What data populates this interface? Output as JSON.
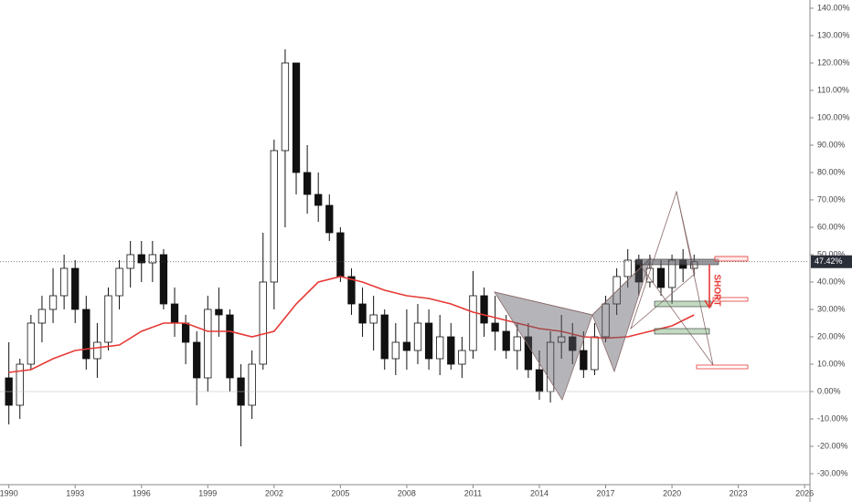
{
  "chart_data": {
    "type": "candlestick",
    "x": [
      1990,
      1990.5,
      1991,
      1991.5,
      1992,
      1992.5,
      1993,
      1993.5,
      1994,
      1994.5,
      1995,
      1995.5,
      1996,
      1996.5,
      1997,
      1997.5,
      1998,
      1998.5,
      1999,
      1999.5,
      2000,
      2000.5,
      2001,
      2001.5,
      2002,
      2002.5,
      2003,
      2003.5,
      2004,
      2004.5,
      2005,
      2005.5,
      2006,
      2006.5,
      2007,
      2007.5,
      2008,
      2008.5,
      2009,
      2009.5,
      2010,
      2010.5,
      2011,
      2011.5,
      2012,
      2012.5,
      2013,
      2013.5,
      2014,
      2014.5,
      2015,
      2015.5,
      2016,
      2016.5,
      2017,
      2017.5,
      2018,
      2018.5,
      2019,
      2019.5,
      2020,
      2020.5,
      2021
    ],
    "open": [
      5,
      -5,
      10,
      25,
      30,
      35,
      45,
      30,
      12,
      18,
      35,
      45,
      50,
      47,
      50,
      32,
      25,
      18,
      5,
      30,
      28,
      5,
      -5,
      10,
      40,
      88,
      120,
      80,
      72,
      68,
      58,
      42,
      32,
      25,
      28,
      12,
      18,
      15,
      25,
      12,
      20,
      10,
      15,
      35,
      25,
      22,
      15,
      20,
      8,
      0,
      18,
      20,
      15,
      8,
      20,
      32,
      42,
      48,
      40,
      45,
      38,
      48,
      45
    ],
    "high": [
      18,
      12,
      28,
      35,
      45,
      50,
      48,
      35,
      25,
      38,
      48,
      55,
      55,
      55,
      52,
      38,
      28,
      22,
      35,
      38,
      30,
      10,
      15,
      58,
      92,
      125,
      120,
      90,
      80,
      72,
      60,
      45,
      38,
      35,
      30,
      25,
      30,
      32,
      30,
      28,
      25,
      20,
      44,
      38,
      35,
      28,
      25,
      25,
      15,
      22,
      28,
      25,
      22,
      25,
      35,
      45,
      52,
      50,
      50,
      48,
      50,
      52,
      50
    ],
    "low": [
      -12,
      -10,
      8,
      18,
      25,
      30,
      25,
      8,
      5,
      15,
      30,
      38,
      40,
      40,
      30,
      20,
      10,
      -5,
      0,
      20,
      0,
      -20,
      -10,
      8,
      30,
      60,
      72,
      65,
      62,
      55,
      40,
      28,
      20,
      15,
      8,
      6,
      8,
      10,
      8,
      6,
      8,
      5,
      12,
      20,
      15,
      12,
      8,
      5,
      -3,
      -4,
      12,
      10,
      5,
      6,
      18,
      28,
      38,
      35,
      38,
      35,
      32,
      40,
      42
    ],
    "close": [
      -5,
      10,
      25,
      30,
      35,
      45,
      30,
      12,
      18,
      35,
      45,
      50,
      47,
      50,
      32,
      25,
      18,
      5,
      30,
      28,
      5,
      -5,
      10,
      40,
      88,
      120,
      80,
      72,
      68,
      58,
      42,
      32,
      25,
      28,
      12,
      18,
      15,
      25,
      12,
      20,
      10,
      15,
      35,
      25,
      22,
      15,
      20,
      8,
      0,
      18,
      20,
      15,
      8,
      20,
      32,
      42,
      48,
      40,
      45,
      38,
      48,
      45,
      47.42
    ],
    "ma": {
      "color": "#e53935",
      "x": [
        1990,
        1991,
        1992,
        1993,
        1994,
        1995,
        1996,
        1997,
        1998,
        1999,
        2000,
        2001,
        2002,
        2003,
        2004,
        2005,
        2006,
        2007,
        2008,
        2009,
        2010,
        2011,
        2012,
        2013,
        2014,
        2015,
        2016,
        2017,
        2018,
        2019,
        2020,
        2021
      ],
      "values": [
        7,
        8,
        12,
        15,
        16,
        17,
        22,
        25,
        25,
        22,
        22,
        20,
        22,
        32,
        40,
        42,
        40,
        37,
        35,
        34,
        32,
        29,
        27,
        25,
        23,
        22,
        20,
        19.5,
        20,
        22,
        24,
        28
      ]
    },
    "last_price": {
      "value": 47.42,
      "label": "47.42%"
    },
    "annotations": [
      "SHORT"
    ],
    "xlim": [
      1989.6,
      2026.2
    ],
    "ylim": [
      -33,
      143
    ],
    "xticks": [
      1990,
      1993,
      1996,
      1999,
      2002,
      2005,
      2008,
      2011,
      2014,
      2017,
      2020,
      2023,
      2026
    ],
    "yticks": [
      {
        "value": 140,
        "label": "140.00%"
      },
      {
        "value": 130,
        "label": "130.00%"
      },
      {
        "value": 120,
        "label": "120.00%"
      },
      {
        "value": 110,
        "label": "110.00%"
      },
      {
        "value": 100,
        "label": "100.00%"
      },
      {
        "value": 90,
        "label": "90.00%"
      },
      {
        "value": 80,
        "label": "80.00%"
      },
      {
        "value": 70,
        "label": "70.00%"
      },
      {
        "value": 60,
        "label": "60.00%"
      },
      {
        "value": 50,
        "label": "50.00%"
      },
      {
        "value": 40,
        "label": "40.00%"
      },
      {
        "value": 30,
        "label": "30.00%"
      },
      {
        "value": 20,
        "label": "20.00%"
      },
      {
        "value": 10,
        "label": "10.00%"
      },
      {
        "value": 0,
        "label": "0.00%"
      },
      {
        "value": -10,
        "label": "-10.00%"
      },
      {
        "value": -20,
        "label": "-20.00%"
      },
      {
        "value": -30,
        "label": "-30.00%"
      }
    ]
  }
}
